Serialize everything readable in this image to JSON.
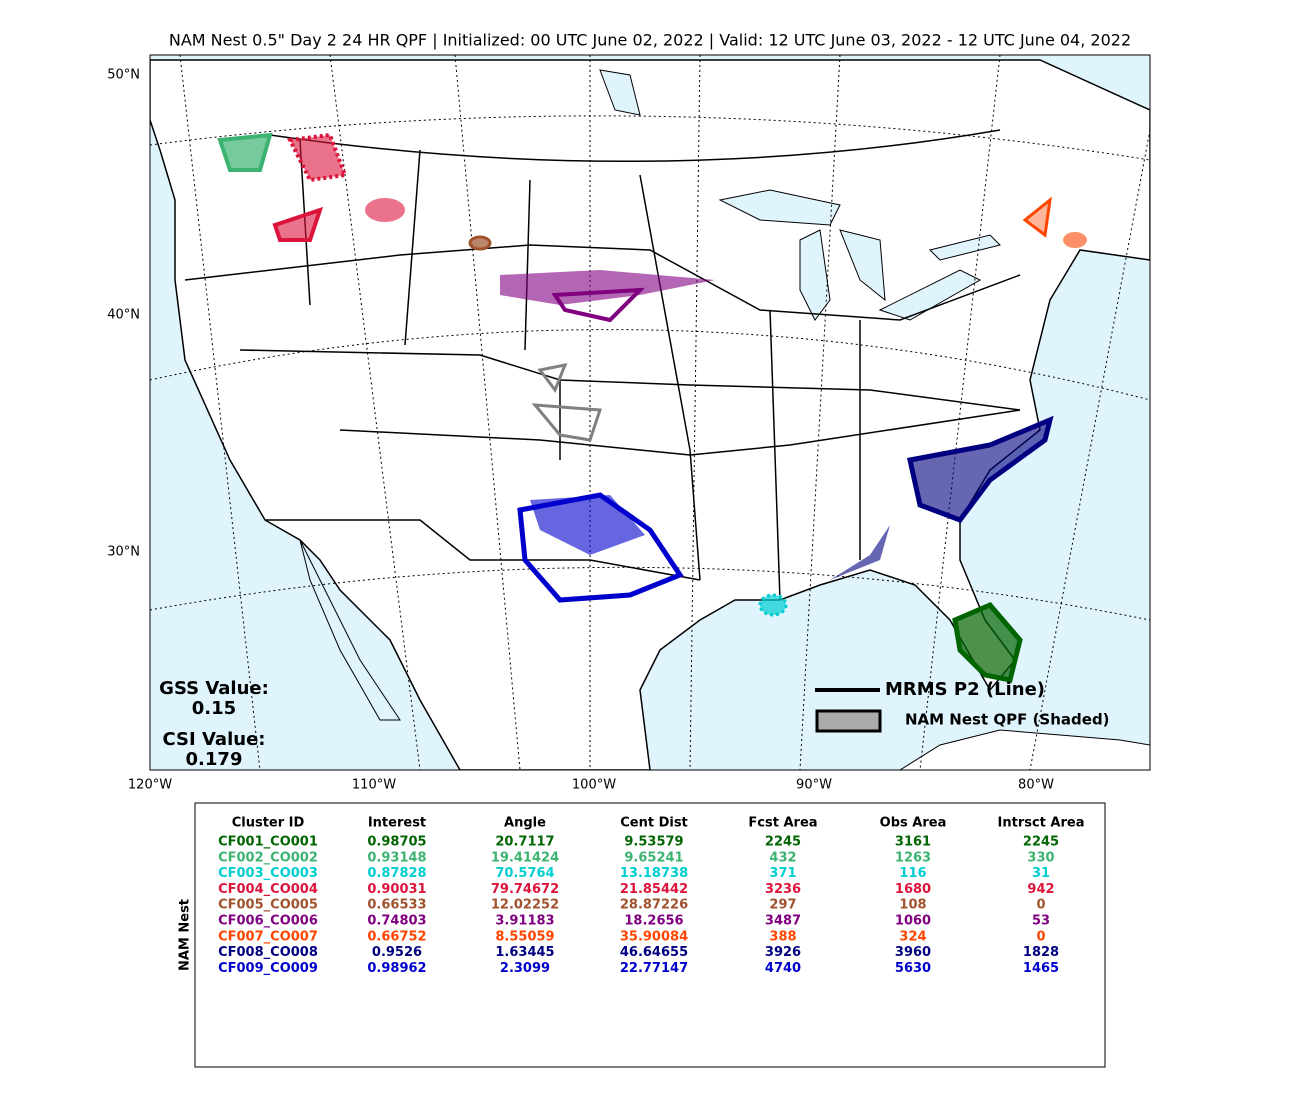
{
  "title": "NAM Nest 0.5\" Day 2 24 HR QPF | Initialized: 00 UTC June 02, 2022 | Valid: 12 UTC June 03, 2022 - 12 UTC June 04, 2022",
  "map": {
    "lat_labels": [
      "50°N",
      "40°N",
      "30°N"
    ],
    "lon_labels": [
      "120°W",
      "110°W",
      "100°W",
      "90°W",
      "80°W"
    ],
    "gss": {
      "label": "GSS Value:",
      "value": "0.15"
    },
    "csi": {
      "label": "CSI Value:",
      "value": "0.179"
    },
    "legend": [
      "MRMS P2 (Line)",
      "NAM Nest QPF (Shaded)"
    ]
  },
  "table": {
    "side_label": "NAM Nest",
    "columns": [
      "Cluster ID",
      "Interest",
      "Angle",
      "Cent Dist",
      "Fcst Area",
      "Obs Area",
      "Intrsct Area"
    ],
    "rows": [
      {
        "color": "#006400",
        "cells": [
          "CF001_CO001",
          "0.98705",
          "20.7117",
          "9.53579",
          "2245",
          "3161",
          "2245"
        ]
      },
      {
        "color": "#3cb371",
        "cells": [
          "CF002_CO002",
          "0.93148",
          "19.41424",
          "9.65241",
          "432",
          "1263",
          "330"
        ]
      },
      {
        "color": "#00ced1",
        "cells": [
          "CF003_CO003",
          "0.87828",
          "70.5764",
          "13.18738",
          "371",
          "116",
          "31"
        ]
      },
      {
        "color": "#dc143c",
        "cells": [
          "CF004_CO004",
          "0.90031",
          "79.74672",
          "21.85442",
          "3236",
          "1680",
          "942"
        ]
      },
      {
        "color": "#a0522d",
        "cells": [
          "CF005_CO005",
          "0.66533",
          "12.02252",
          "28.87226",
          "297",
          "108",
          "0"
        ]
      },
      {
        "color": "#800080",
        "cells": [
          "CF006_CO006",
          "0.74803",
          "3.91183",
          "18.2656",
          "3487",
          "1060",
          "53"
        ]
      },
      {
        "color": "#ff4500",
        "cells": [
          "CF007_CO007",
          "0.66752",
          "8.55059",
          "35.90084",
          "388",
          "324",
          "0"
        ]
      },
      {
        "color": "#000080",
        "cells": [
          "CF008_CO008",
          "0.9526",
          "1.63445",
          "46.64655",
          "3926",
          "3960",
          "1828"
        ]
      },
      {
        "color": "#0000cd",
        "cells": [
          "CF009_CO009",
          "0.98962",
          "2.3099",
          "22.77147",
          "4740",
          "5630",
          "1465"
        ]
      }
    ]
  }
}
